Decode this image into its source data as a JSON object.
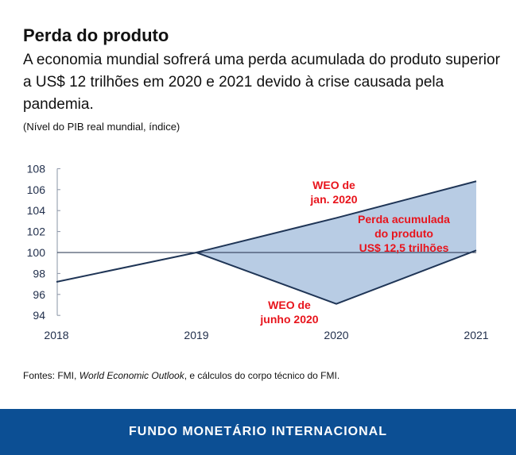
{
  "header": {
    "title": "Perda do produto",
    "subtitle": "A economia mundial sofrerá uma perda acumulada do produto superior a US$ 12 trilhões em 2020 e 2021 devido à crise causada pela pandemia.",
    "note": "(Nível do PIB real mundial, índice)"
  },
  "chart_data": {
    "type": "line",
    "x": [
      "2018",
      "2019",
      "2020",
      "2021"
    ],
    "ylim": [
      94,
      108
    ],
    "yticks": [
      "94",
      "96",
      "98",
      "100",
      "102",
      "104",
      "106",
      "108"
    ],
    "reference_line": 100,
    "series": [
      {
        "name": "WEO de jan. 2020",
        "values": [
          97.2,
          100,
          103.3,
          106.8
        ]
      },
      {
        "name": "WEO de junho 2020",
        "values": [
          null,
          100,
          95.1,
          100.2
        ]
      }
    ],
    "shaded_area": {
      "between": [
        "WEO de jan. 2020",
        "WEO de junho 2020"
      ],
      "from": "2019",
      "to": "2021"
    },
    "annotations": {
      "jan": [
        "WEO de",
        "jan. 2020"
      ],
      "june": [
        "WEO de",
        "junho 2020"
      ],
      "loss": [
        "Perda acumulada",
        "do produto",
        "US$ 12,5 trilhões"
      ]
    },
    "colors": {
      "line": "#1f3556",
      "fill": "#b8cce4",
      "annotation": "#e8141c"
    },
    "grid": false
  },
  "source": {
    "prefix": "Fontes: FMI, ",
    "italic": "World Economic Outlook",
    "suffix": ", e cálculos do corpo técnico do FMI."
  },
  "footer": {
    "label": "FUNDO MONETÁRIO INTERNACIONAL",
    "color": "#0c4f94"
  }
}
